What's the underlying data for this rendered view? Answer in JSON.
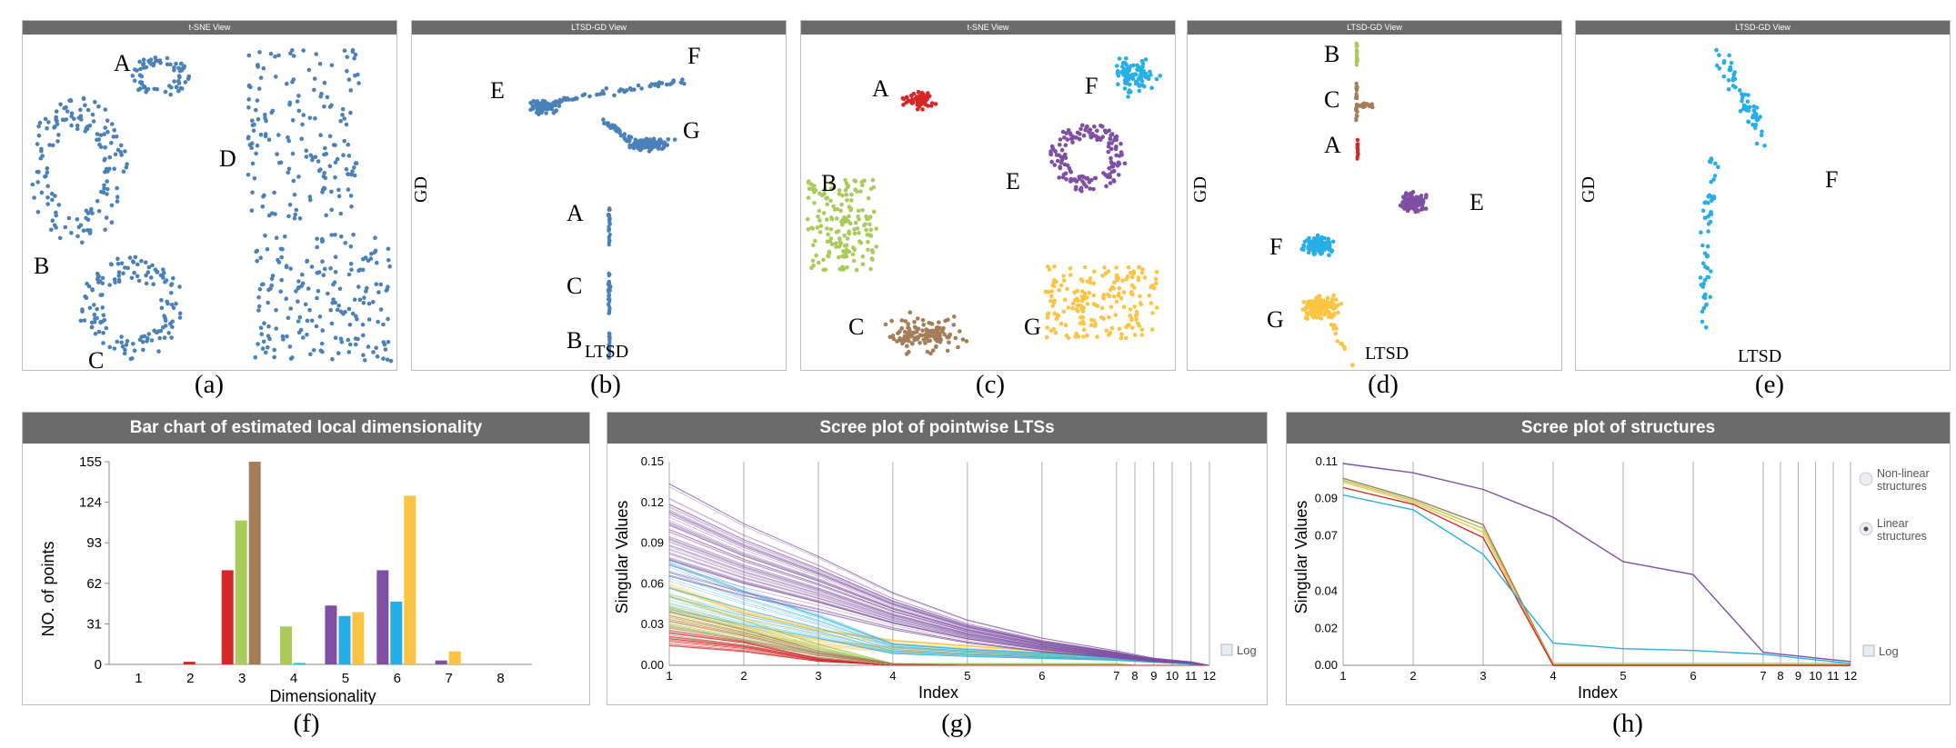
{
  "colors": {
    "blue": "#4a81b8",
    "red": "#d62728",
    "green": "#a9cb5a",
    "brown": "#a57d57",
    "purple": "#7e4fa3",
    "cyan": "#27aee6",
    "yellow": "#fbc443",
    "header": "#6b6b6b"
  },
  "panels": {
    "a": {
      "title": "t-SNE View",
      "caption": "(a)",
      "labels": [
        "A",
        "B",
        "C",
        "D"
      ]
    },
    "b": {
      "title": "LTSD-GD View",
      "caption": "(b)",
      "ylabel": "GD",
      "xlabel": "LTSD",
      "labels": [
        "E",
        "F",
        "G",
        "A",
        "C",
        "B"
      ]
    },
    "c": {
      "title": "t-SNE View",
      "caption": "(c)",
      "labels": [
        "A",
        "F",
        "B",
        "E",
        "C",
        "G"
      ]
    },
    "d": {
      "title": "LTSD-GD View",
      "caption": "(d)",
      "ylabel": "GD",
      "xlabel": "LTSD",
      "labels": [
        "B",
        "C",
        "A",
        "E",
        "F",
        "G"
      ]
    },
    "e": {
      "title": "LTSD-GD View",
      "caption": "(e)",
      "ylabel": "GD",
      "xlabel": "LTSD",
      "labels": [
        "F"
      ]
    },
    "f": {
      "title": "Bar chart of estimated local dimensionality",
      "caption": "(f)"
    },
    "g": {
      "title": "Scree plot of pointwise LTSs",
      "caption": "(g)",
      "log_label": "Log"
    },
    "h": {
      "title": "Scree plot of structures",
      "caption": "(h)",
      "log_label": "Log",
      "legend": [
        {
          "label_line1": "Non-linear",
          "label_line2": "structures",
          "checked": false
        },
        {
          "label_line1": "Linear",
          "label_line2": "structures",
          "checked": true
        }
      ]
    }
  },
  "chart_data": [
    {
      "type": "bar",
      "title": "Bar chart of estimated local dimensionality",
      "xlabel": "Dimensionality",
      "ylabel": "NO. of points",
      "categories": [
        "1",
        "2",
        "3",
        "4",
        "5",
        "6",
        "7",
        "8"
      ],
      "yticks": [
        "0",
        "31",
        "62",
        "93",
        "124",
        "155"
      ],
      "ylim": [
        0,
        155
      ],
      "series": [
        {
          "color": "#d62728",
          "values": [
            0,
            2,
            72,
            0,
            0,
            0,
            0,
            0
          ]
        },
        {
          "color": "#a9cb5a",
          "values": [
            0,
            0,
            110,
            29,
            0,
            0,
            0,
            0
          ]
        },
        {
          "color": "#a57d57",
          "values": [
            0,
            0,
            155,
            0,
            0,
            0,
            0,
            0
          ]
        },
        {
          "color": "#7e4fa3",
          "values": [
            0,
            0,
            0,
            0,
            45,
            72,
            3,
            0
          ]
        },
        {
          "color": "#27aee6",
          "values": [
            0,
            0,
            0,
            1,
            37,
            48,
            0,
            0
          ]
        },
        {
          "color": "#fbc443",
          "values": [
            0,
            0,
            0,
            0,
            40,
            129,
            10,
            0
          ]
        }
      ],
      "grid": false
    },
    {
      "type": "line",
      "title": "Scree plot of pointwise LTSs",
      "xlabel": "Index",
      "ylabel": "Singular Values",
      "x": [
        1,
        2,
        3,
        4,
        5,
        6,
        7,
        8,
        9,
        10,
        11,
        12
      ],
      "yticks": [
        "0.00",
        "0.03",
        "0.06",
        "0.09",
        "0.12",
        "0.15"
      ],
      "ylim": [
        0,
        0.15
      ],
      "log_scale": false,
      "series": [
        {
          "color": "#fbc443",
          "values": [
            0.045,
            0.03,
            0.02,
            0.014,
            0.011,
            0.008,
            0.005,
            0.004,
            0.003,
            0.002,
            0.001,
            0.0
          ]
        },
        {
          "color": "#27aee6",
          "values": [
            0.058,
            0.042,
            0.028,
            0.012,
            0.009,
            0.007,
            0.005,
            0.004,
            0.003,
            0.002,
            0.001,
            0.0
          ]
        },
        {
          "color": "#a9cb5a",
          "values": [
            0.04,
            0.026,
            0.012,
            0.001,
            0.001,
            0.001,
            0.001,
            0.0,
            0.0,
            0.0,
            0.0,
            0.0
          ]
        },
        {
          "color": "#a57d57",
          "values": [
            0.03,
            0.02,
            0.008,
            0.001,
            0.0,
            0.0,
            0.0,
            0.0,
            0.0,
            0.0,
            0.0,
            0.0
          ]
        },
        {
          "color": "#d62728",
          "values": [
            0.02,
            0.014,
            0.004,
            0.0,
            0.0,
            0.0,
            0.0,
            0.0,
            0.0,
            0.0,
            0.0,
            0.0
          ]
        },
        {
          "color": "#7e4fa3",
          "values": [
            0.1,
            0.078,
            0.06,
            0.04,
            0.025,
            0.015,
            0.008,
            0.006,
            0.004,
            0.003,
            0.002,
            0.0
          ]
        }
      ]
    },
    {
      "type": "line",
      "title": "Scree plot of structures",
      "xlabel": "Index",
      "ylabel": "Singular Values",
      "x": [
        1,
        2,
        3,
        4,
        5,
        6,
        7,
        8,
        9,
        10,
        11,
        12
      ],
      "yticks": [
        "0.00",
        "0.02",
        "0.04",
        "0.07",
        "0.09",
        "0.11"
      ],
      "ylim": [
        0,
        0.11
      ],
      "log_scale": false,
      "series": [
        {
          "color": "#7e4fa3",
          "values": [
            0.109,
            0.104,
            0.095,
            0.08,
            0.056,
            0.049,
            0.007,
            0.006,
            0.005,
            0.004,
            0.003,
            0.002
          ]
        },
        {
          "color": "#a9cb5a",
          "values": [
            0.1,
            0.089,
            0.074,
            0.001,
            0.001,
            0.001,
            0.001,
            0.001,
            0.001,
            0.001,
            0.001,
            0.001
          ]
        },
        {
          "color": "#a57d57",
          "values": [
            0.101,
            0.09,
            0.076,
            0.0,
            0.0,
            0.0,
            0.0,
            0.0,
            0.0,
            0.0,
            0.0,
            0.0
          ]
        },
        {
          "color": "#fbc443",
          "values": [
            0.099,
            0.088,
            0.072,
            0.0,
            0.0,
            0.0,
            0.0,
            0.0,
            0.0,
            0.0,
            0.0,
            0.0
          ]
        },
        {
          "color": "#d62728",
          "values": [
            0.096,
            0.087,
            0.069,
            0.0,
            0.0,
            0.0,
            0.0,
            0.0,
            0.0,
            0.0,
            0.0,
            0.0
          ]
        },
        {
          "color": "#27aee6",
          "values": [
            0.092,
            0.084,
            0.06,
            0.012,
            0.009,
            0.008,
            0.006,
            0.005,
            0.004,
            0.003,
            0.002,
            0.001
          ]
        }
      ]
    }
  ]
}
